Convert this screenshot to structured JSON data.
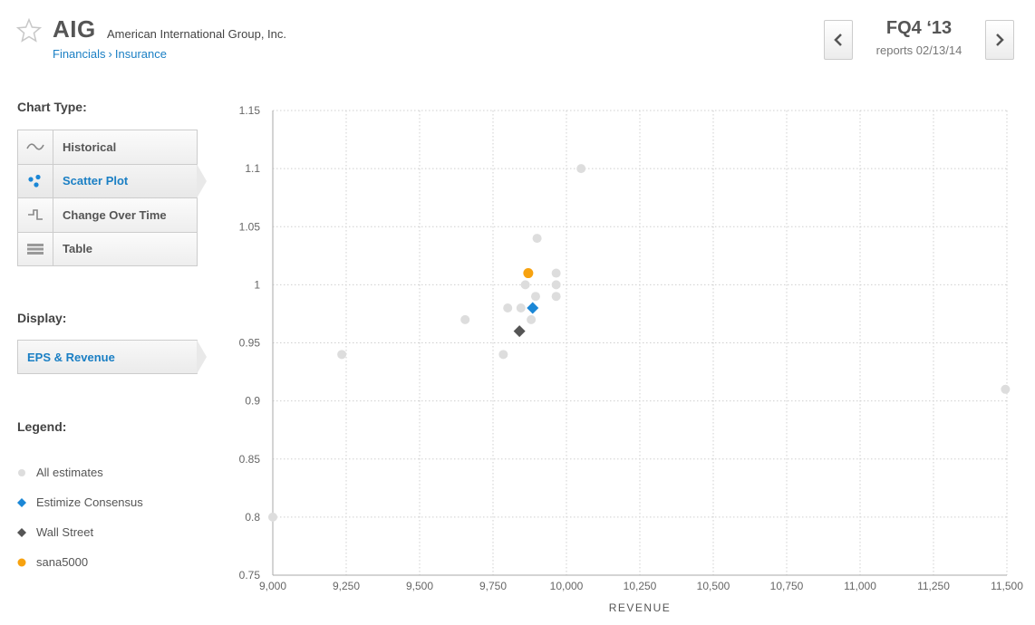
{
  "header": {
    "ticker": "AIG",
    "company": "American International Group, Inc.",
    "breadcrumb": [
      "Financials",
      "Insurance"
    ],
    "breadcrumb_sep": "›",
    "quarter": "FQ4 ‘13",
    "reports": "reports 02/13/14"
  },
  "sidebar": {
    "chart_type_label": "Chart Type:",
    "chart_types": [
      {
        "label": "Historical",
        "icon": "wave-icon",
        "active": false
      },
      {
        "label": "Scatter Plot",
        "icon": "scatter-icon",
        "active": true
      },
      {
        "label": "Change Over Time",
        "icon": "step-icon",
        "active": false
      },
      {
        "label": "Table",
        "icon": "table-icon",
        "active": false
      }
    ],
    "display_label": "Display:",
    "display_value": "EPS & Revenue",
    "legend_label": "Legend:",
    "legend": [
      {
        "label": "All estimates",
        "marker": "circle",
        "color": "#dddddd"
      },
      {
        "label": "Estimize Consensus",
        "marker": "diamond",
        "color": "#1b87d6"
      },
      {
        "label": "Wall Street",
        "marker": "diamond",
        "color": "#555555"
      },
      {
        "label": "sana5000",
        "marker": "circle",
        "color": "#f7a20f"
      }
    ]
  },
  "colors": {
    "accent": "#1a7fc4",
    "estimate": "#dddddd",
    "consensus": "#1b87d6",
    "wallstreet": "#555555",
    "user": "#f7a20f"
  },
  "chart_data": {
    "type": "scatter",
    "xlabel": "REVENUE",
    "ylabel": "",
    "xlim": [
      9000,
      11500
    ],
    "ylim": [
      0.75,
      1.15
    ],
    "x_ticks": [
      9000,
      9250,
      9500,
      9750,
      10000,
      10250,
      10500,
      10750,
      11000,
      11250,
      11500
    ],
    "x_tick_labels": [
      "9,000",
      "9,250",
      "9,500",
      "9,750",
      "10,000",
      "10,250",
      "10,500",
      "10,750",
      "11,000",
      "11,250",
      "11,500"
    ],
    "y_ticks": [
      0.75,
      0.8,
      0.85,
      0.9,
      0.95,
      1,
      1.05,
      1.1,
      1.15
    ],
    "y_tick_labels": [
      "0.75",
      "0.8",
      "0.85",
      "0.9",
      "0.95",
      "1",
      "1.05",
      "1.1",
      "1.15"
    ],
    "grid": true,
    "series": [
      {
        "name": "All estimates",
        "marker": "circle",
        "points": [
          [
            9000,
            0.8
          ],
          [
            9235,
            0.94
          ],
          [
            9655,
            0.97
          ],
          [
            9785,
            0.94
          ],
          [
            9800,
            0.98
          ],
          [
            9845,
            0.98
          ],
          [
            9860,
            1.0
          ],
          [
            9880,
            0.97
          ],
          [
            9895,
            0.99
          ],
          [
            9900,
            1.04
          ],
          [
            9965,
            1.01
          ],
          [
            9965,
            1.0
          ],
          [
            9965,
            0.99
          ],
          [
            10050,
            1.1
          ],
          [
            11495,
            0.91
          ]
        ]
      },
      {
        "name": "Estimize Consensus",
        "marker": "diamond",
        "points": [
          [
            9885,
            0.98
          ]
        ]
      },
      {
        "name": "Wall Street",
        "marker": "diamond",
        "points": [
          [
            9840,
            0.96
          ]
        ]
      },
      {
        "name": "sana5000",
        "marker": "circle",
        "points": [
          [
            9870,
            1.01
          ]
        ]
      }
    ]
  }
}
